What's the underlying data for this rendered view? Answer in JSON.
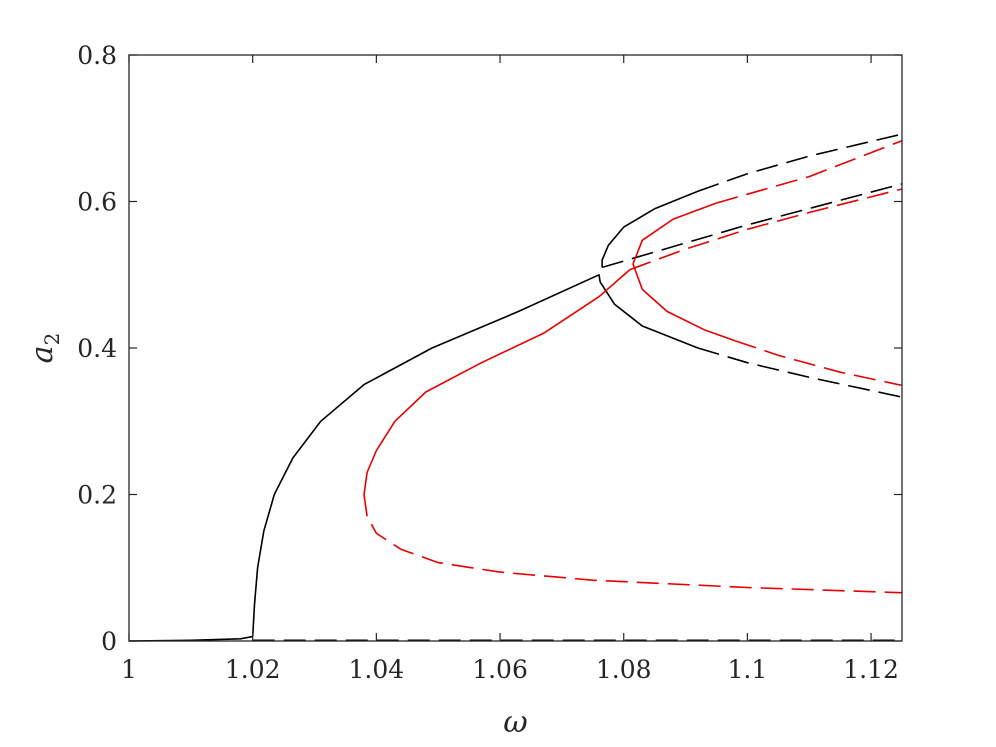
{
  "chart_data": {
    "type": "line",
    "xlabel": "ω",
    "ylabel_base": "a",
    "ylabel_sub": "2",
    "xlim": [
      1.0,
      1.125
    ],
    "ylim": [
      0.0,
      0.8
    ],
    "xticks": [
      1,
      1.02,
      1.04,
      1.06,
      1.08,
      1.1,
      1.12
    ],
    "xtick_labels": [
      "1",
      "1.02",
      "1.04",
      "1.06",
      "1.08",
      "1.1",
      "1.12"
    ],
    "yticks": [
      0,
      0.2,
      0.4,
      0.6,
      0.8
    ],
    "ytick_labels": [
      "0",
      "0.2",
      "0.4",
      "0.6",
      "0.8"
    ],
    "grid": false,
    "colors": {
      "black": "#000000",
      "red": "#e60000",
      "axis": "#262626"
    },
    "series": [
      {
        "color": "black",
        "style": "solid",
        "points": [
          [
            1.0,
            0.0
          ],
          [
            1.01,
            0.001
          ],
          [
            1.018,
            0.003
          ],
          [
            1.02,
            0.006
          ]
        ]
      },
      {
        "color": "black",
        "style": "solid",
        "points": [
          [
            1.02,
            0.006
          ],
          [
            1.0203,
            0.05
          ],
          [
            1.0208,
            0.1
          ],
          [
            1.0218,
            0.15
          ],
          [
            1.0235,
            0.2
          ],
          [
            1.0265,
            0.25
          ],
          [
            1.031,
            0.3
          ],
          [
            1.038,
            0.35
          ],
          [
            1.049,
            0.4
          ],
          [
            1.063,
            0.45
          ],
          [
            1.076,
            0.5
          ],
          [
            1.0762,
            0.49
          ]
        ]
      },
      {
        "color": "black",
        "style": "solid",
        "points": [
          [
            1.0762,
            0.49
          ],
          [
            1.0785,
            0.46
          ],
          [
            1.083,
            0.43
          ],
          [
            1.092,
            0.4
          ]
        ]
      },
      {
        "color": "black",
        "style": "dashed",
        "points": [
          [
            1.092,
            0.4
          ],
          [
            1.1,
            0.38
          ],
          [
            1.11,
            0.36
          ],
          [
            1.125,
            0.333
          ]
        ]
      },
      {
        "color": "black",
        "style": "dashed",
        "points": [
          [
            1.0765,
            0.51
          ],
          [
            1.085,
            0.531
          ],
          [
            1.1,
            0.568
          ],
          [
            1.125,
            0.624
          ]
        ]
      },
      {
        "color": "black",
        "style": "solid",
        "points": [
          [
            1.0765,
            0.51
          ],
          [
            1.0765,
            0.52
          ],
          [
            1.0775,
            0.54
          ],
          [
            1.08,
            0.565
          ],
          [
            1.085,
            0.59
          ],
          [
            1.092,
            0.614
          ]
        ]
      },
      {
        "color": "black",
        "style": "dashed",
        "points": [
          [
            1.092,
            0.614
          ],
          [
            1.1,
            0.638
          ],
          [
            1.11,
            0.662
          ],
          [
            1.125,
            0.692
          ]
        ]
      },
      {
        "color": "black",
        "style": "dashed",
        "points": [
          [
            1.02,
            0.001
          ],
          [
            1.125,
            0.001
          ]
        ]
      },
      {
        "color": "red",
        "style": "dashed",
        "points": [
          [
            1.038,
            0.2
          ],
          [
            1.0385,
            0.17
          ],
          [
            1.04,
            0.147
          ],
          [
            1.044,
            0.125
          ],
          [
            1.05,
            0.107
          ],
          [
            1.06,
            0.094
          ],
          [
            1.075,
            0.083
          ],
          [
            1.1,
            0.073
          ],
          [
            1.125,
            0.066
          ]
        ]
      },
      {
        "color": "red",
        "style": "solid",
        "points": [
          [
            1.038,
            0.2
          ],
          [
            1.0385,
            0.23
          ],
          [
            1.04,
            0.26
          ],
          [
            1.043,
            0.3
          ],
          [
            1.048,
            0.34
          ],
          [
            1.057,
            0.38
          ],
          [
            1.067,
            0.42
          ],
          [
            1.076,
            0.47
          ],
          [
            1.081,
            0.507
          ]
        ]
      },
      {
        "color": "red",
        "style": "solid",
        "points": [
          [
            1.0815,
            0.515
          ],
          [
            1.083,
            0.547
          ],
          [
            1.088,
            0.576
          ],
          [
            1.095,
            0.598
          ]
        ]
      },
      {
        "color": "red",
        "style": "dashed",
        "points": [
          [
            1.095,
            0.598
          ],
          [
            1.1,
            0.61
          ],
          [
            1.11,
            0.634
          ],
          [
            1.125,
            0.683
          ]
        ]
      },
      {
        "color": "red",
        "style": "solid",
        "points": [
          [
            1.0815,
            0.515
          ],
          [
            1.083,
            0.48
          ],
          [
            1.087,
            0.45
          ],
          [
            1.093,
            0.425
          ],
          [
            1.098,
            0.41
          ]
        ]
      },
      {
        "color": "red",
        "style": "dashed",
        "points": [
          [
            1.098,
            0.41
          ],
          [
            1.105,
            0.39
          ],
          [
            1.115,
            0.367
          ],
          [
            1.125,
            0.349
          ]
        ]
      },
      {
        "color": "red",
        "style": "dashed",
        "points": [
          [
            1.081,
            0.507
          ],
          [
            1.09,
            0.535
          ],
          [
            1.1,
            0.562
          ],
          [
            1.11,
            0.585
          ],
          [
            1.125,
            0.617
          ]
        ]
      }
    ]
  }
}
